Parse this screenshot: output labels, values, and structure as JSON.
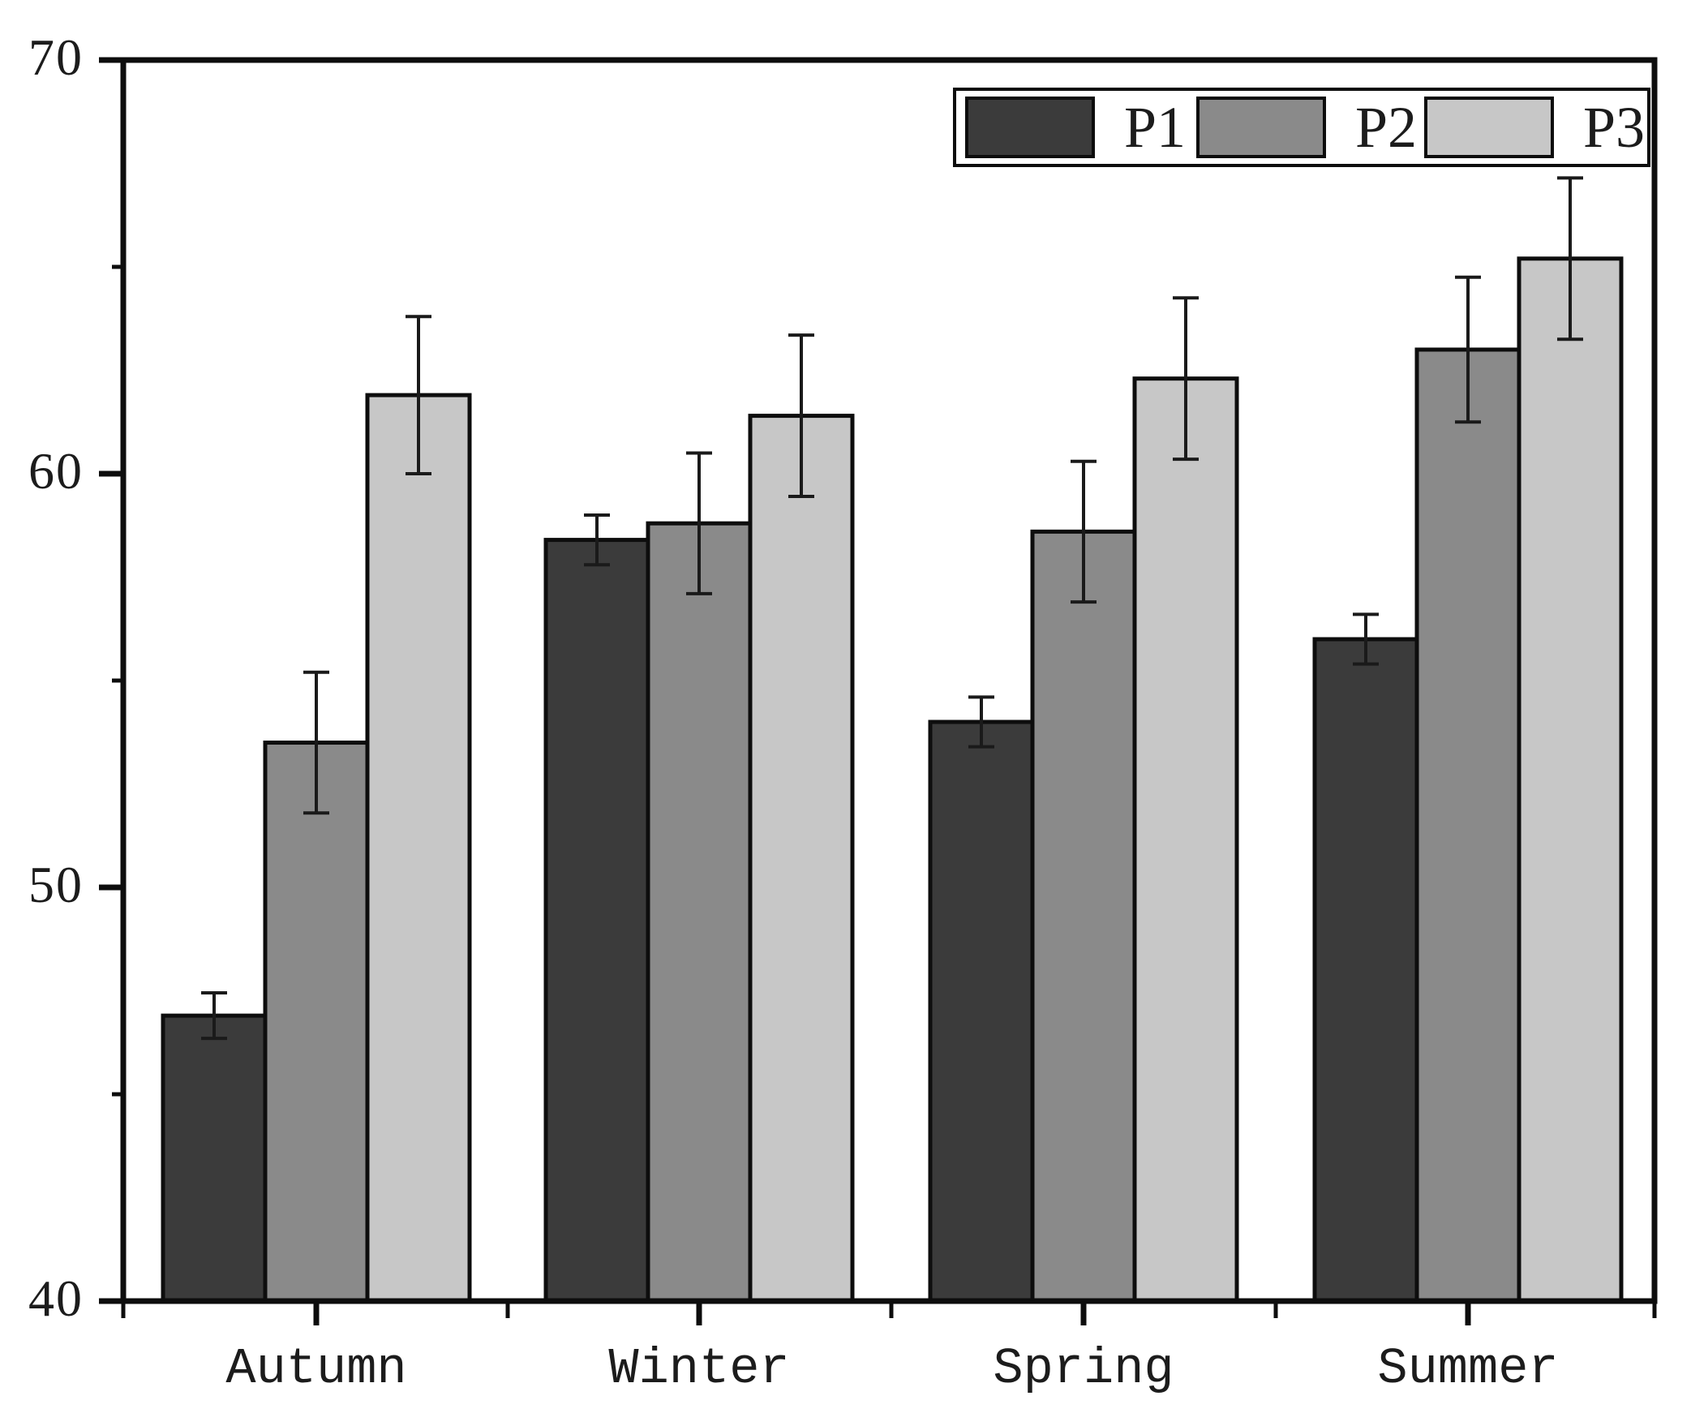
{
  "chart_data": {
    "type": "bar",
    "title": "",
    "xlabel": "",
    "ylabel": "",
    "categories": [
      "Autumn",
      "Winter",
      "Spring",
      "Summer"
    ],
    "series": [
      {
        "name": "P1",
        "color": "#3b3b3b",
        "values": [
          46.9,
          58.4,
          54.0,
          56.0
        ],
        "errors": [
          0.55,
          0.6,
          0.6,
          0.6
        ]
      },
      {
        "name": "P2",
        "color": "#8a8a8a",
        "values": [
          53.5,
          58.8,
          58.6,
          63.0
        ],
        "errors": [
          1.7,
          1.7,
          1.7,
          1.75
        ]
      },
      {
        "name": "P3",
        "color": "#c7c7c7",
        "values": [
          61.9,
          61.4,
          62.3,
          65.2
        ],
        "errors": [
          1.9,
          1.95,
          1.95,
          1.95
        ]
      }
    ],
    "ylim": [
      40,
      70
    ],
    "yticks_major": [
      40,
      50,
      60,
      70
    ],
    "yticks_minor": [
      45,
      55,
      65
    ],
    "ytick_labels": [
      "40",
      "50",
      "60",
      "70"
    ],
    "grid": false,
    "error_bars": true,
    "legend": {
      "position": "top-right",
      "labels": [
        "P1",
        "P2",
        "P3"
      ]
    },
    "axis_color": "#0d0d0d",
    "error_bar_color": "#1a1a1a",
    "background_color": "#ffffff"
  }
}
